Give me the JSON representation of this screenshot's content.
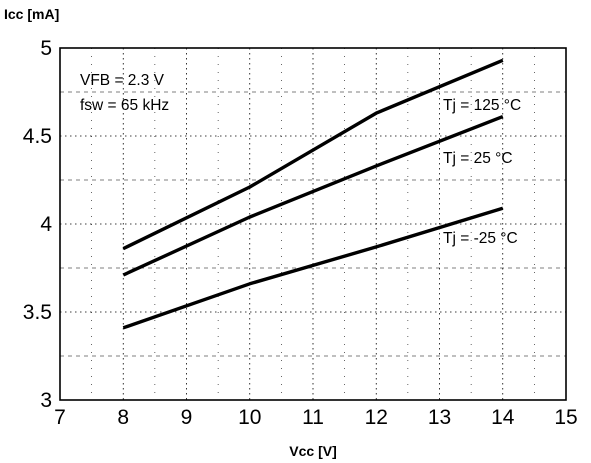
{
  "chart_data": {
    "type": "line",
    "title": "",
    "xlabel": "Vcc [V]",
    "ylabel": "Icc [mA]",
    "xlim": [
      7,
      15
    ],
    "ylim": [
      3,
      5
    ],
    "xticks": [
      7,
      8,
      9,
      10,
      11,
      12,
      13,
      14,
      15
    ],
    "yticks": [
      3,
      3.5,
      4,
      4.5,
      5
    ],
    "xtick_labels": [
      "7",
      "8",
      "9",
      "10",
      "11",
      "12",
      "13",
      "14",
      "15"
    ],
    "ytick_labels": [
      "3",
      "3.5",
      "4",
      "4.5",
      "5"
    ],
    "grid": true,
    "annotations": [
      "VFB = 2.3 V",
      "fsw = 65 kHz"
    ],
    "series": [
      {
        "name": "Tj = 125 °C",
        "x": [
          8,
          10,
          12,
          14
        ],
        "y": [
          3.86,
          4.21,
          4.63,
          4.93
        ]
      },
      {
        "name": "Tj = 25 °C",
        "x": [
          8,
          10,
          12,
          14
        ],
        "y": [
          3.71,
          4.04,
          4.33,
          4.61
        ]
      },
      {
        "name": "Tj = -25 °C",
        "x": [
          8,
          10,
          12,
          14
        ],
        "y": [
          3.41,
          3.66,
          3.87,
          4.09
        ]
      }
    ]
  },
  "colors": {
    "line": "#000000",
    "grid": "#000000",
    "frame": "#000000"
  }
}
